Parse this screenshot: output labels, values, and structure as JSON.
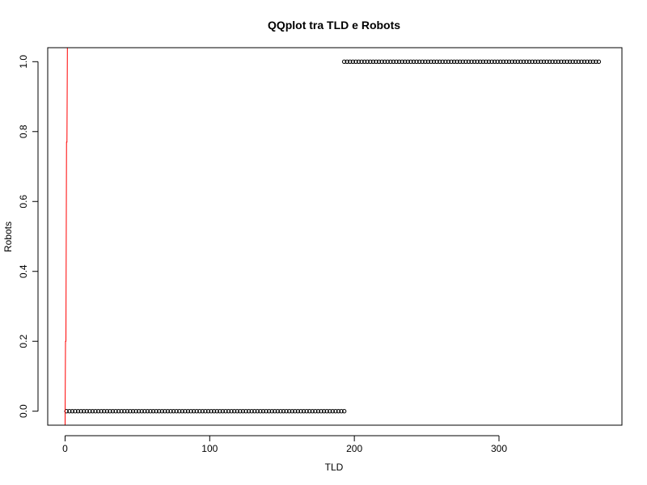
{
  "chart_data": {
    "type": "scatter",
    "title": "QQplot tra TLD e Robots",
    "xlabel": "TLD",
    "ylabel": "Robots",
    "xlim": [
      -12,
      385
    ],
    "ylim": [
      -0.04,
      1.04
    ],
    "xticks": [
      0,
      100,
      200,
      300
    ],
    "xtick_labels": [
      "0",
      "100",
      "200",
      "300"
    ],
    "yticks": [
      0,
      0.2,
      0.4,
      0.6,
      0.8,
      1.0
    ],
    "ytick_labels": [
      "0.0",
      "0.2",
      "0.4",
      "0.6",
      "0.8",
      "1.0"
    ],
    "grid": false,
    "legend": "none",
    "series": [
      {
        "marker": "open-circle",
        "color": "#000000",
        "x_start": 1,
        "x_end": 193,
        "x_step": 2,
        "y": 0
      },
      {
        "marker": "open-circle",
        "color": "#000000",
        "x_start": 193,
        "x_end": 369,
        "x_step": 2,
        "y": 1
      }
    ],
    "reference_line": {
      "color": "#ff0000",
      "points": [
        [
          0.0,
          -0.04
        ],
        [
          0.3,
          0.2
        ],
        [
          0.6,
          0.2
        ],
        [
          1.0,
          0.77
        ],
        [
          1.3,
          0.77
        ],
        [
          1.6,
          1.04
        ]
      ]
    },
    "colors": {
      "points": "#000000",
      "reference": "#ff0000"
    }
  }
}
